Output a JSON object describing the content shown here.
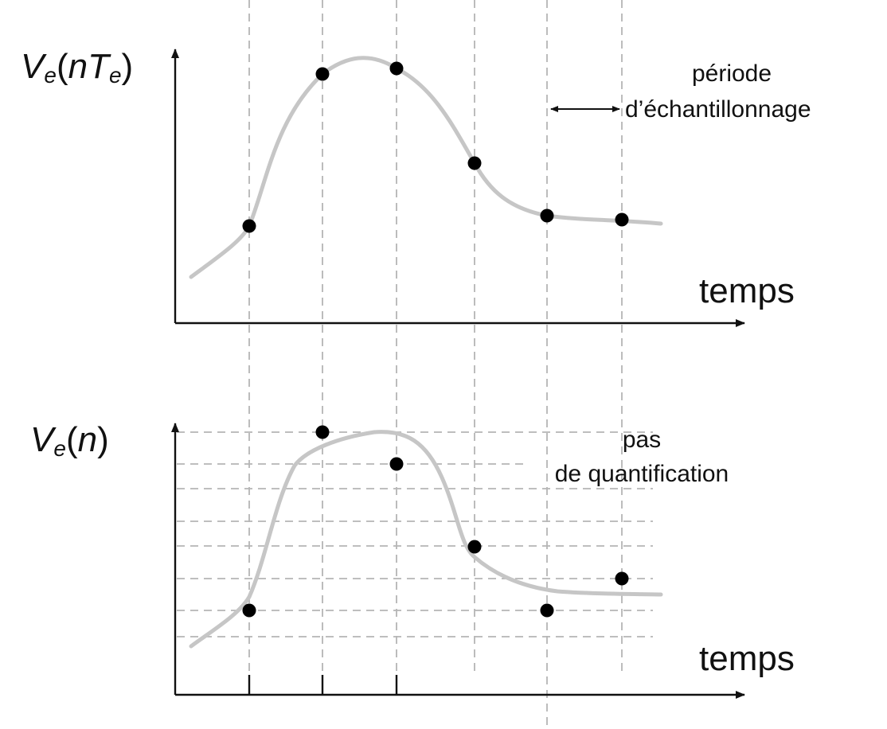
{
  "top_plot": {
    "ylabel": {
      "main": "V",
      "sub": "e",
      "open": "(",
      "n": "n",
      "T": "T",
      "tsub": "e",
      "close": ")"
    },
    "xlabel": "temps",
    "annotation_line1": "période",
    "annotation_line2": "d’échantillonnage"
  },
  "bottom_plot": {
    "ylabel": {
      "main": "V",
      "sub": "e",
      "open": "(",
      "n": "n",
      "close": ")"
    },
    "xlabel": "temps",
    "annotation_line1": "pas",
    "annotation_line2": "de quantification"
  },
  "colors": {
    "axis": "#111111",
    "curve": "#c6c6c6",
    "guide": "#b5b5b5",
    "dot": "#000000"
  }
}
